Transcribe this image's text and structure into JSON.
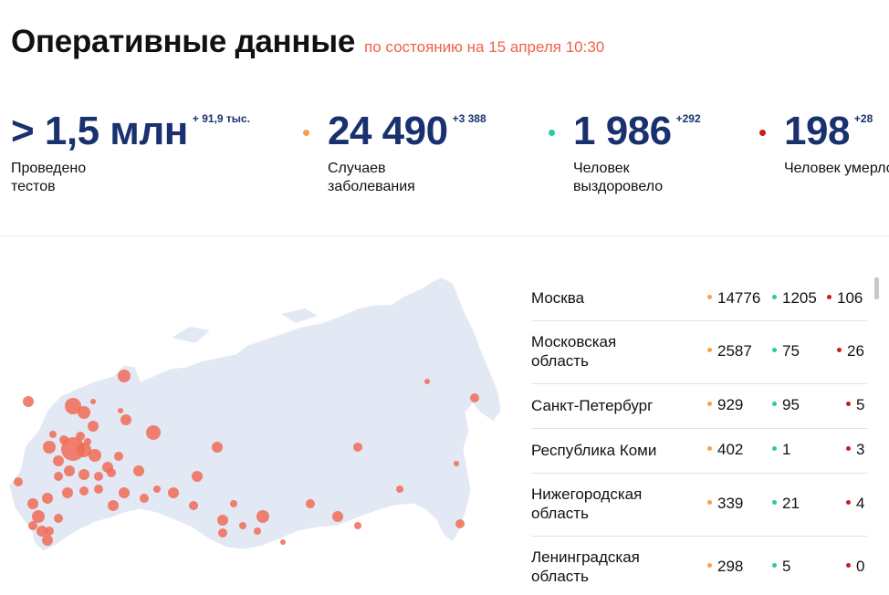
{
  "header": {
    "title": "Оперативные данные",
    "as_of": "по состоянию на 15 апреля 10:30"
  },
  "stats": [
    {
      "value": "> 1,5 млн",
      "delta": "+ 91,9 тыс.",
      "label": "Проведено тестов",
      "dot_color": ""
    },
    {
      "value": "24 490",
      "delta": "+3 388",
      "label": "Случаев заболевания",
      "dot_color": "#f4a34a"
    },
    {
      "value": "1 986",
      "delta": "+292",
      "label": "Человек выздоровело",
      "dot_color": "#2ec8a8"
    },
    {
      "value": "198",
      "delta": "+28",
      "label": "Человек умерло",
      "dot_color": "#c81e1e"
    }
  ],
  "colors": {
    "cases": "#f4a34a",
    "recovered": "#2ec8a8",
    "deaths": "#c81e1e",
    "map_land": "#e3e8f5",
    "map_bubble": "#f06b55"
  },
  "regions": [
    {
      "name": "Москва",
      "cases": "14776",
      "recovered": "1205",
      "deaths": "106"
    },
    {
      "name": "Московская область",
      "cases": "2587",
      "recovered": "75",
      "deaths": "26"
    },
    {
      "name": "Санкт-Петербург",
      "cases": "929",
      "recovered": "95",
      "deaths": "5"
    },
    {
      "name": "Республика Коми",
      "cases": "402",
      "recovered": "1",
      "deaths": "3"
    },
    {
      "name": "Нижегородская область",
      "cases": "339",
      "recovered": "21",
      "deaths": "4"
    },
    {
      "name": "Ленинградская область",
      "cases": "298",
      "recovered": "5",
      "deaths": "0"
    }
  ]
}
